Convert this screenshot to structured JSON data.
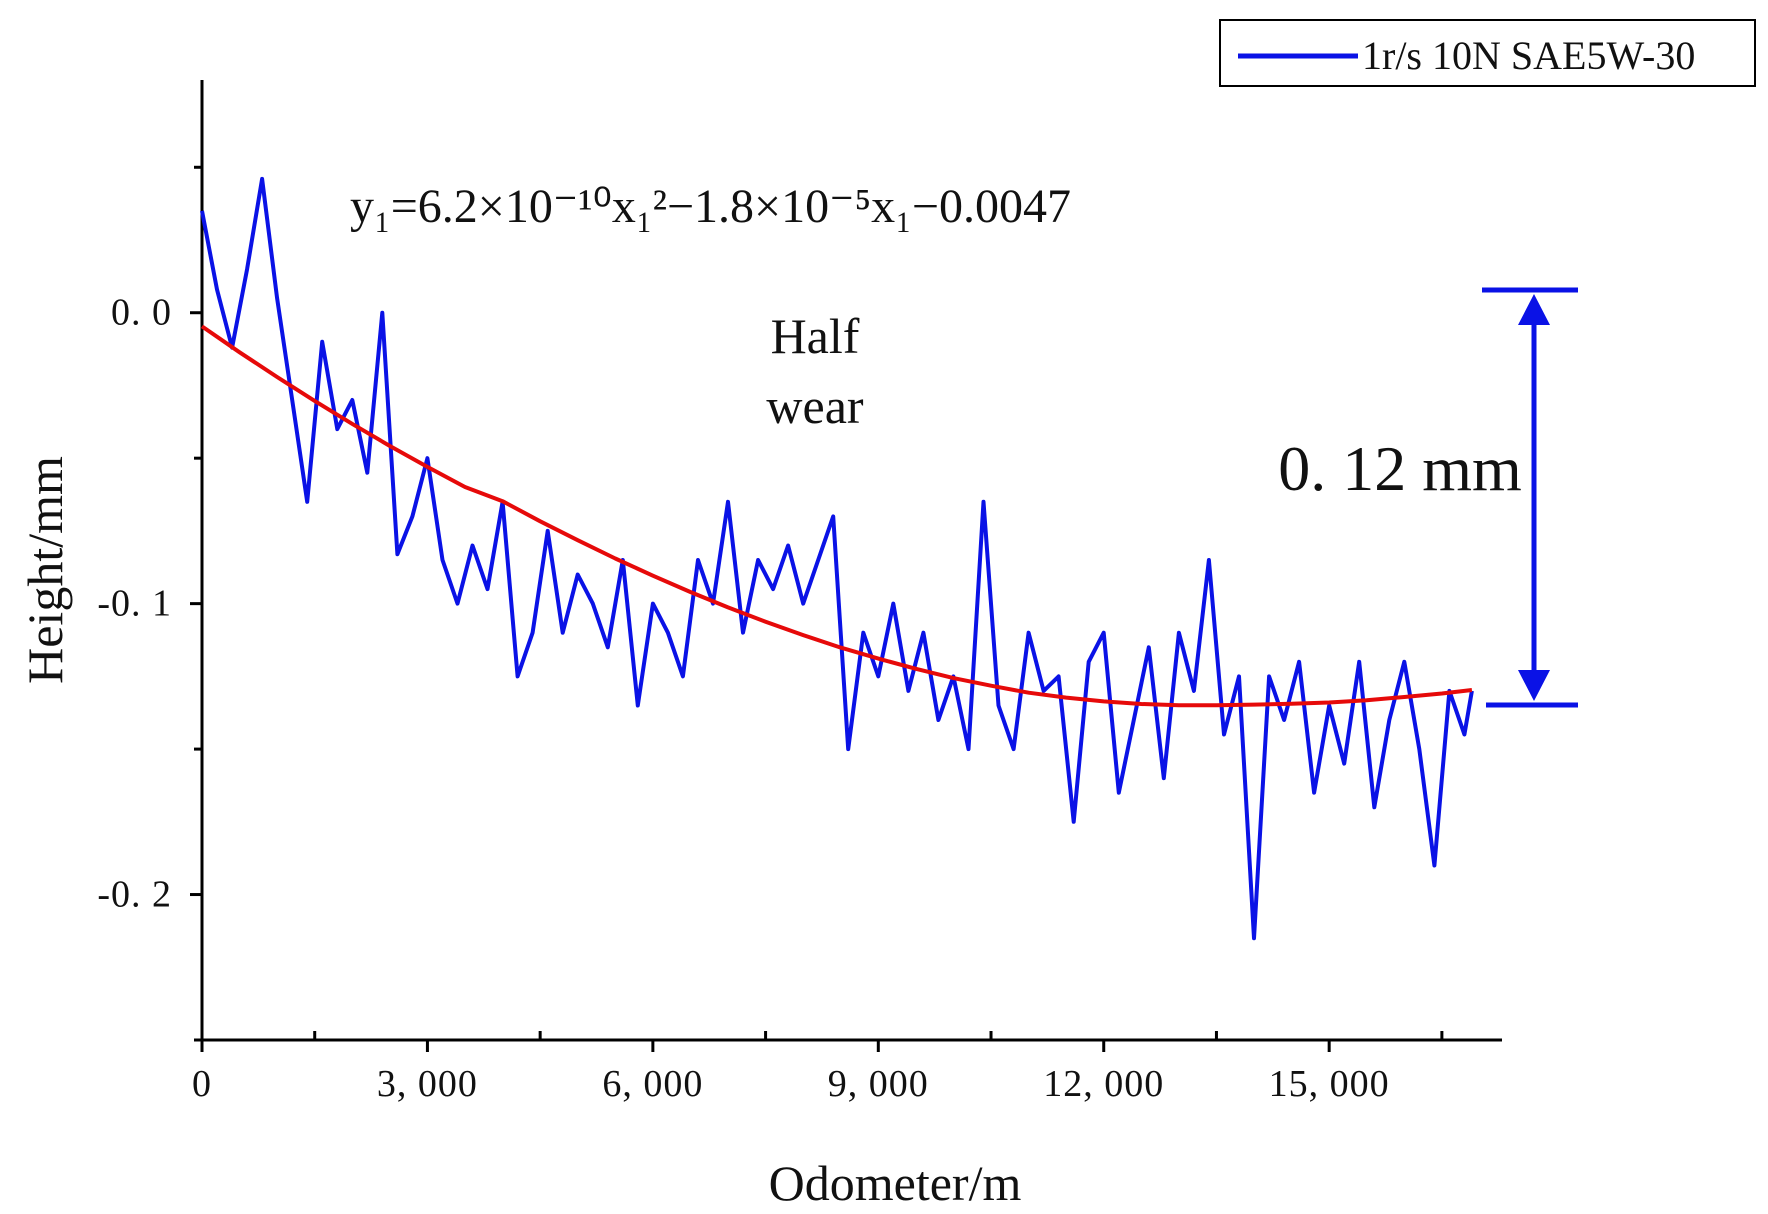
{
  "chart_data": {
    "type": "line",
    "xlabel": "Odometer/m",
    "ylabel": "Height/mm",
    "xlim": [
      0,
      17300
    ],
    "ylim": [
      -0.25,
      0.08
    ],
    "x_ticks": [
      0,
      3000,
      6000,
      9000,
      12000,
      15000
    ],
    "x_tick_labels": [
      "0",
      "3, 000",
      "6, 000",
      "9, 000",
      "12, 000",
      "15, 000"
    ],
    "y_ticks": [
      0.0,
      -0.1,
      -0.2
    ],
    "y_tick_labels": [
      "0. 0",
      "-0. 1",
      "-0. 2"
    ],
    "grid": false,
    "legend_position": "top-right",
    "series": [
      {
        "name": "1r/s 10N SAE5W-30",
        "color": "#0a12e6",
        "x": [
          0,
          200,
          400,
          600,
          800,
          1000,
          1200,
          1400,
          1600,
          1800,
          2000,
          2200,
          2400,
          2600,
          2800,
          3000,
          3200,
          3400,
          3600,
          3800,
          4000,
          4200,
          4400,
          4600,
          4800,
          5000,
          5200,
          5400,
          5600,
          5800,
          6000,
          6200,
          6400,
          6600,
          6800,
          7000,
          7200,
          7400,
          7600,
          7800,
          8000,
          8200,
          8400,
          8600,
          8800,
          9000,
          9200,
          9400,
          9600,
          9800,
          10000,
          10200,
          10400,
          10600,
          10800,
          11000,
          11200,
          11400,
          11600,
          11800,
          12000,
          12200,
          12400,
          12600,
          12800,
          13000,
          13200,
          13400,
          13600,
          13800,
          14000,
          14200,
          14400,
          14600,
          14800,
          15000,
          15200,
          15400,
          15600,
          15800,
          16000,
          16200,
          16400,
          16600,
          16800,
          16900
        ],
        "y": [
          0.035,
          0.008,
          -0.012,
          0.015,
          0.046,
          0.005,
          -0.03,
          -0.065,
          -0.01,
          -0.04,
          -0.03,
          -0.055,
          0.0,
          -0.083,
          -0.07,
          -0.05,
          -0.085,
          -0.1,
          -0.08,
          -0.095,
          -0.065,
          -0.125,
          -0.11,
          -0.075,
          -0.11,
          -0.09,
          -0.1,
          -0.115,
          -0.085,
          -0.135,
          -0.1,
          -0.11,
          -0.125,
          -0.085,
          -0.1,
          -0.065,
          -0.11,
          -0.085,
          -0.095,
          -0.08,
          -0.1,
          -0.085,
          -0.07,
          -0.15,
          -0.11,
          -0.125,
          -0.1,
          -0.13,
          -0.11,
          -0.14,
          -0.125,
          -0.15,
          -0.065,
          -0.135,
          -0.15,
          -0.11,
          -0.13,
          -0.125,
          -0.175,
          -0.12,
          -0.11,
          -0.165,
          -0.14,
          -0.115,
          -0.16,
          -0.11,
          -0.13,
          -0.085,
          -0.145,
          -0.125,
          -0.215,
          -0.125,
          -0.14,
          -0.12,
          -0.165,
          -0.135,
          -0.155,
          -0.12,
          -0.17,
          -0.14,
          -0.12,
          -0.15,
          -0.19,
          -0.13,
          -0.145,
          -0.13
        ]
      },
      {
        "color": "#e60a0a",
        "x": [
          0,
          500,
          1000,
          1500,
          2000,
          2500,
          3000,
          3500,
          4000,
          4500,
          5000,
          5500,
          6000,
          6500,
          7000,
          7500,
          8000,
          8500,
          9000,
          9500,
          10000,
          10500,
          11000,
          11500,
          12000,
          12500,
          13000,
          13500,
          14000,
          14500,
          15000,
          15500,
          16000,
          16500,
          16900
        ],
        "y": [
          -0.0047,
          -0.0136,
          -0.0221,
          -0.0303,
          -0.0382,
          -0.0458,
          -0.053,
          -0.0599,
          -0.0648,
          -0.0717,
          -0.0782,
          -0.0845,
          -0.0904,
          -0.096,
          -0.1013,
          -0.1062,
          -0.1108,
          -0.1151,
          -0.1189,
          -0.1224,
          -0.1256,
          -0.1282,
          -0.1306,
          -0.1323,
          -0.1336,
          -0.1345,
          -0.1349,
          -0.1349,
          -0.1347,
          -0.1344,
          -0.134,
          -0.1332,
          -0.1321,
          -0.1309,
          -0.1297
        ]
      }
    ],
    "annotations": {
      "equation": "y₁=6.2×10⁻¹⁰x₁²−1.8×10⁻⁵x₁−0.0047",
      "note_line1": "Half",
      "note_line2": "wear",
      "dimension_label": "0. 12  mm",
      "dimension_color": "#0a12e6"
    }
  }
}
